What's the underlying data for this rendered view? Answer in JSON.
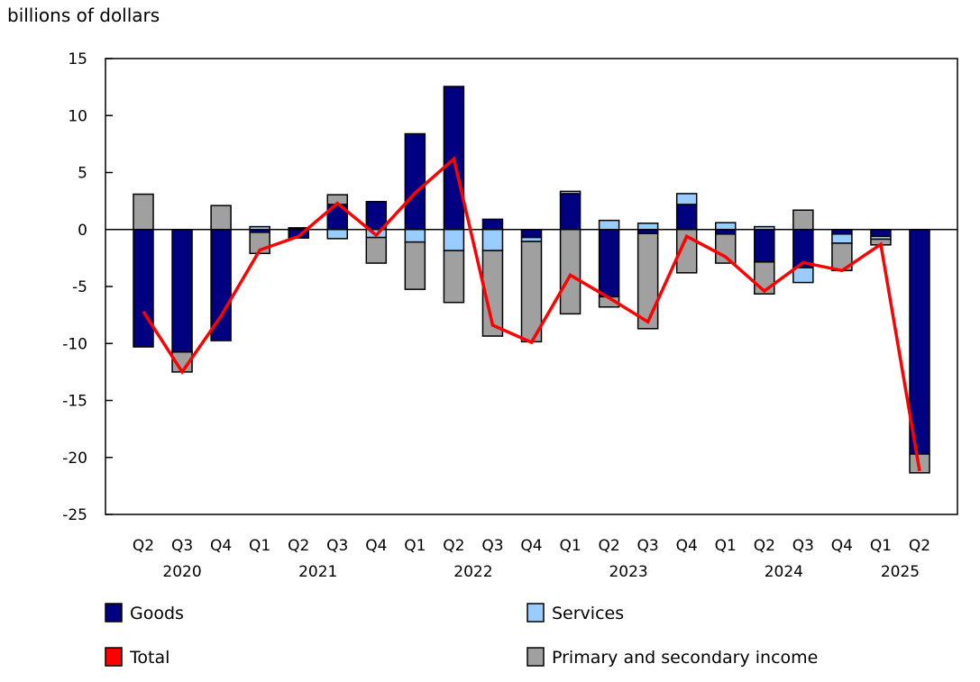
{
  "chart_data": {
    "type": "bar",
    "stacked": true,
    "ylabel": "billions of dollars",
    "ylim": [
      -25,
      15
    ],
    "yticks": [
      15,
      10,
      5,
      0,
      -5,
      -10,
      -15,
      -20,
      -25
    ],
    "grid": false,
    "legend_position": "bottom",
    "categories": [
      "Q2",
      "Q3",
      "Q4",
      "Q1",
      "Q2",
      "Q3",
      "Q4",
      "Q1",
      "Q2",
      "Q3",
      "Q4",
      "Q1",
      "Q2",
      "Q3",
      "Q4",
      "Q1",
      "Q2",
      "Q3",
      "Q4",
      "Q1",
      "Q2"
    ],
    "years": [
      {
        "label": "2020",
        "from": 0,
        "to": 2
      },
      {
        "label": "2021",
        "from": 3,
        "to": 6
      },
      {
        "label": "2022",
        "from": 7,
        "to": 10
      },
      {
        "label": "2023",
        "from": 11,
        "to": 14
      },
      {
        "label": "2024",
        "from": 15,
        "to": 18
      },
      {
        "label": "2025",
        "from": 19,
        "to": 20
      }
    ],
    "series": [
      {
        "name": "Goods",
        "kind": "bar",
        "color": "#000080",
        "values": [
          -10.3,
          -10.75,
          -9.75,
          -0.25,
          -0.75,
          2.2,
          2.45,
          8.4,
          12.55,
          0.9,
          -0.7,
          3.15,
          -5.9,
          -0.35,
          2.2,
          -0.4,
          -2.85,
          -3.35,
          -0.4,
          -0.6,
          -19.7
        ]
      },
      {
        "name": "Services",
        "kind": "bar",
        "color": "#99ccff",
        "values": [
          0,
          0,
          0,
          0.25,
          0.05,
          -0.8,
          -0.7,
          -1.1,
          -1.85,
          -1.85,
          -0.35,
          0.2,
          0.8,
          0.55,
          0.95,
          0.6,
          0.25,
          -1.3,
          -0.8,
          -0.25,
          0
        ]
      },
      {
        "name": "Primary and secondary income",
        "kind": "bar",
        "color": "#a0a0a0",
        "values": [
          3.1,
          -1.75,
          2.1,
          -1.85,
          0.1,
          0.85,
          -2.25,
          -4.15,
          -4.55,
          -7.5,
          -8.8,
          -7.4,
          -0.9,
          -8.35,
          -3.8,
          -2.55,
          -2.8,
          1.7,
          -2.4,
          -0.5,
          -1.65
        ]
      },
      {
        "name": "Total",
        "kind": "line",
        "color": "#ff0000",
        "values": [
          -7.2,
          -12.5,
          -7.6,
          -1.8,
          -0.6,
          2.3,
          -0.5,
          3.2,
          6.2,
          -8.4,
          -9.9,
          -4.0,
          -6.0,
          -8.1,
          -0.6,
          -2.4,
          -5.4,
          -2.9,
          -3.6,
          -1.3,
          -21.2
        ]
      }
    ],
    "legend": [
      {
        "name": "Goods",
        "color": "#000080"
      },
      {
        "name": "Services",
        "color": "#99ccff"
      },
      {
        "name": "Total",
        "color": "#ff0000"
      },
      {
        "name": "Primary and secondary income",
        "color": "#a0a0a0"
      }
    ]
  }
}
